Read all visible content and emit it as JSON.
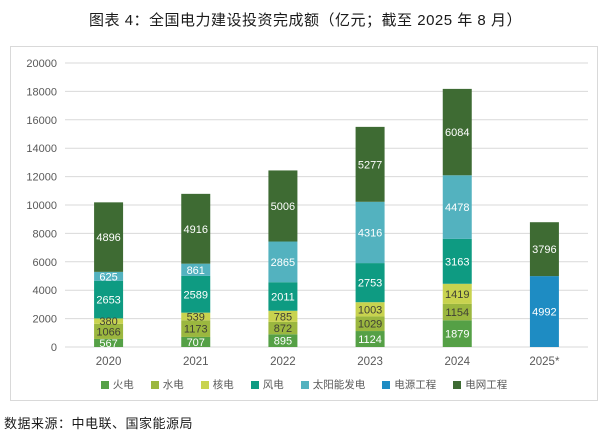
{
  "title": "图表 4：全国电力建设投资完成额（亿元；截至 2025 年 8 月）",
  "source": "数据来源：中电联、国家能源局",
  "chart_data": {
    "type": "bar",
    "stacked": true,
    "title": "图表 4：全国电力建设投资完成额（亿元；截至 2025 年 8 月）",
    "categories": [
      "2020",
      "2021",
      "2022",
      "2023",
      "2024",
      "2025*"
    ],
    "series": [
      {
        "name": "火电",
        "color": "#55A046",
        "label_color": "#ffffff",
        "values": [
          567,
          707,
          895,
          1124,
          1879,
          null
        ]
      },
      {
        "name": "水电",
        "color": "#9BB73F",
        "label_color": "#404035",
        "values": [
          1066,
          1173,
          872,
          1029,
          1154,
          null
        ]
      },
      {
        "name": "核电",
        "color": "#C8D34F",
        "label_color": "#404035",
        "values": [
          380,
          539,
          785,
          1003,
          1419,
          null
        ]
      },
      {
        "name": "风电",
        "color": "#0E9B82",
        "label_color": "#ffffff",
        "values": [
          2653,
          2589,
          2011,
          2753,
          3163,
          null
        ]
      },
      {
        "name": "太阳能发电",
        "color": "#53B2BF",
        "label_color": "#ffffff",
        "values": [
          625,
          861,
          2865,
          4316,
          4478,
          null
        ]
      },
      {
        "name": "电源工程",
        "color": "#1E8CC3",
        "label_color": "#ffffff",
        "values": [
          null,
          null,
          null,
          null,
          null,
          4992
        ]
      },
      {
        "name": "电网工程",
        "color": "#3E6B33",
        "label_color": "#ffffff",
        "values": [
          4896,
          4916,
          5006,
          5277,
          6084,
          3796
        ]
      }
    ],
    "ylim": [
      0,
      20000
    ],
    "ytick_step": 2000,
    "xlabel": "",
    "ylabel": "",
    "grid": "horizontal",
    "grid_color": "#d9d9d9",
    "axis_text_color": "#595959",
    "legend_position": "bottom"
  }
}
